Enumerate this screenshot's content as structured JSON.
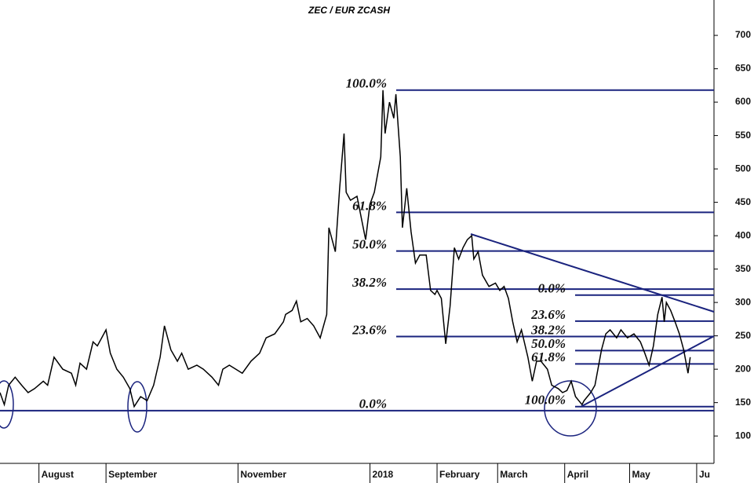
{
  "chart_data": {
    "type": "line",
    "title": "ZEC / EUR ZCASH",
    "color": "#000000",
    "x": [
      13,
      15,
      17,
      20,
      23,
      26,
      29,
      33,
      35,
      38,
      42,
      46,
      48,
      50,
      53,
      56,
      58,
      62,
      64,
      67,
      70,
      73,
      75,
      78,
      81,
      84,
      87,
      89,
      92,
      95,
      97,
      100,
      104,
      107,
      111,
      114,
      116,
      119,
      122,
      125,
      129,
      133,
      136,
      140,
      144,
      145,
      148,
      150,
      152,
      155,
      158,
      161,
      164,
      165,
      168,
      170,
      172,
      173,
      175,
      178,
      182,
      184,
      186,
      189,
      190,
      191,
      193,
      195,
      196,
      198,
      199,
      201,
      203,
      205,
      207,
      210,
      212,
      214,
      215,
      217,
      219,
      221,
      223,
      225,
      227,
      229,
      231,
      232,
      234,
      236,
      239,
      242,
      244,
      246,
      248,
      250,
      252,
      254,
      257,
      259,
      261,
      263,
      266,
      268,
      271,
      273,
      275,
      277,
      279,
      282,
      283,
      286,
      288,
      291,
      293,
      295,
      298,
      300,
      303,
      306,
      309,
      311,
      313,
      315,
      317,
      319,
      320,
      321,
      323,
      325,
      327,
      329,
      331,
      332
    ],
    "values": [
      165,
      147,
      176,
      188,
      176,
      165,
      171,
      182,
      176,
      218,
      200,
      194,
      176,
      209,
      200,
      241,
      235,
      259,
      224,
      200,
      188,
      171,
      144,
      159,
      153,
      176,
      218,
      265,
      229,
      212,
      224,
      200,
      206,
      200,
      188,
      176,
      200,
      206,
      200,
      194,
      212,
      224,
      247,
      253,
      271,
      282,
      288,
      302,
      271,
      276,
      265,
      247,
      282,
      412,
      376,
      471,
      553,
      465,
      453,
      459,
      394,
      447,
      465,
      518,
      618,
      553,
      600,
      576,
      612,
      518,
      412,
      471,
      406,
      359,
      371,
      371,
      318,
      312,
      318,
      306,
      238,
      294,
      382,
      365,
      382,
      394,
      400,
      365,
      376,
      341,
      324,
      329,
      318,
      324,
      306,
      271,
      241,
      259,
      218,
      182,
      212,
      212,
      200,
      176,
      171,
      165,
      168,
      182,
      159,
      147,
      153,
      165,
      176,
      229,
      253,
      259,
      247,
      259,
      247,
      253,
      241,
      224,
      206,
      235,
      282,
      308,
      271,
      300,
      288,
      271,
      253,
      229,
      194,
      218
    ],
    "xlim": [
      13,
      343
    ],
    "ylim": [
      59,
      753
    ],
    "yticks": [
      100,
      150,
      200,
      250,
      300,
      350,
      400,
      450,
      500,
      550,
      600,
      650,
      700
    ],
    "xticks": [
      {
        "value": 31,
        "label": "August"
      },
      {
        "value": 62,
        "label": "September"
      },
      {
        "value": 123,
        "label": "November"
      },
      {
        "value": 184,
        "label": "2018"
      },
      {
        "value": 215,
        "label": "February"
      },
      {
        "value": 243,
        "label": "March"
      },
      {
        "value": 274,
        "label": "April"
      },
      {
        "value": 304,
        "label": "May"
      },
      {
        "value": 335,
        "label": "Ju"
      }
    ],
    "fib_sets": [
      {
        "color": "#1a237e",
        "levels": [
          {
            "label": "100.0%",
            "value": 618
          },
          {
            "label": "61.8%",
            "value": 435
          },
          {
            "label": "50.0%",
            "value": 377
          },
          {
            "label": "38.2%",
            "value": 320
          },
          {
            "label": "23.6%",
            "value": 249
          },
          {
            "label": "0.0%",
            "value": 138
          }
        ]
      },
      {
        "color": "#1a237e",
        "levels": [
          {
            "label": "0.0%",
            "value": 311
          },
          {
            "label": "23.6%",
            "value": 272
          },
          {
            "label": "38.2%",
            "value": 249
          },
          {
            "label": "50.0%",
            "value": 228
          },
          {
            "label": "61.8%",
            "value": 208
          },
          {
            "label": "100.0%",
            "value": 144
          }
        ]
      }
    ]
  }
}
